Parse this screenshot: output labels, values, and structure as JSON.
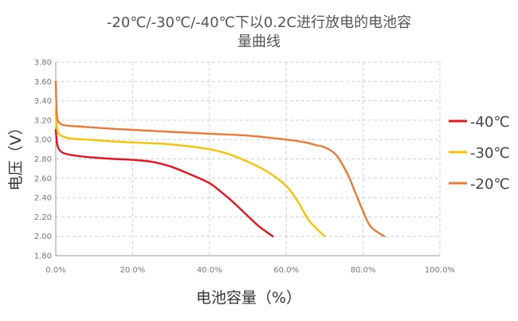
{
  "chart_data": {
    "type": "line",
    "title_line1": "-20℃/-30℃/-40℃下以0.2C进行放电的电池容",
    "title_line2": "量曲线",
    "xlabel": "电池容量（%）",
    "ylabel": "电压（V）",
    "xlim": [
      0,
      100
    ],
    "ylim": [
      1.8,
      3.8
    ],
    "x_ticks": [
      "0.0%",
      "20.0%",
      "40.0%",
      "60.0%",
      "80.0%",
      "100.0%"
    ],
    "x_tick_values": [
      0,
      20,
      40,
      60,
      80,
      100
    ],
    "y_ticks": [
      "1.80",
      "2.00",
      "2.20",
      "2.40",
      "2.60",
      "2.80",
      "3.00",
      "3.20",
      "3.40",
      "3.60",
      "3.80"
    ],
    "y_tick_values": [
      1.8,
      2.0,
      2.2,
      2.4,
      2.6,
      2.8,
      3.0,
      3.2,
      3.4,
      3.6,
      3.8
    ],
    "grid": true,
    "legend_position": "right",
    "series": [
      {
        "name": "-40℃",
        "color": "#e8141b",
        "x": [
          0,
          0.2,
          0.5,
          1,
          2,
          4,
          8,
          15,
          20,
          25,
          30,
          35,
          40,
          43,
          46,
          50,
          53,
          56.5
        ],
        "y": [
          3.1,
          3.0,
          2.93,
          2.89,
          2.86,
          2.84,
          2.82,
          2.8,
          2.79,
          2.77,
          2.72,
          2.64,
          2.55,
          2.46,
          2.36,
          2.21,
          2.1,
          2.0
        ]
      },
      {
        "name": "-30℃",
        "color": "#f7c300",
        "x": [
          0,
          0.2,
          0.5,
          1,
          2,
          4,
          8,
          15,
          20,
          30,
          40,
          45,
          50,
          55,
          60,
          63,
          66,
          70
        ],
        "y": [
          3.3,
          3.15,
          3.08,
          3.05,
          3.03,
          3.01,
          3.0,
          2.98,
          2.97,
          2.95,
          2.9,
          2.85,
          2.77,
          2.67,
          2.52,
          2.36,
          2.16,
          2.0
        ]
      },
      {
        "name": "-20℃",
        "color": "#ea7a35",
        "x": [
          0,
          0.2,
          0.5,
          1,
          2,
          4,
          8,
          15,
          20,
          30,
          40,
          50,
          60,
          65,
          68,
          70,
          73,
          76,
          78,
          80,
          82,
          85.5
        ],
        "y": [
          3.6,
          3.3,
          3.2,
          3.17,
          3.15,
          3.14,
          3.13,
          3.11,
          3.1,
          3.08,
          3.06,
          3.04,
          3.0,
          2.97,
          2.94,
          2.92,
          2.84,
          2.64,
          2.45,
          2.26,
          2.1,
          2.0
        ]
      }
    ]
  }
}
